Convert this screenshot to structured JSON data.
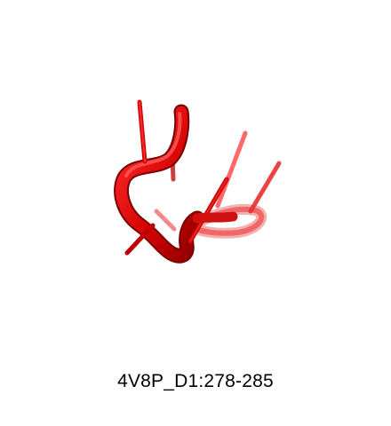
{
  "caption": "4V8P_D1:278-285",
  "colors": {
    "background": "#ffffff",
    "strand_light": "#ff2a2a",
    "strand_mid": "#e00000",
    "strand_dark": "#9a0000",
    "strand_faded": "#f08a8a"
  }
}
